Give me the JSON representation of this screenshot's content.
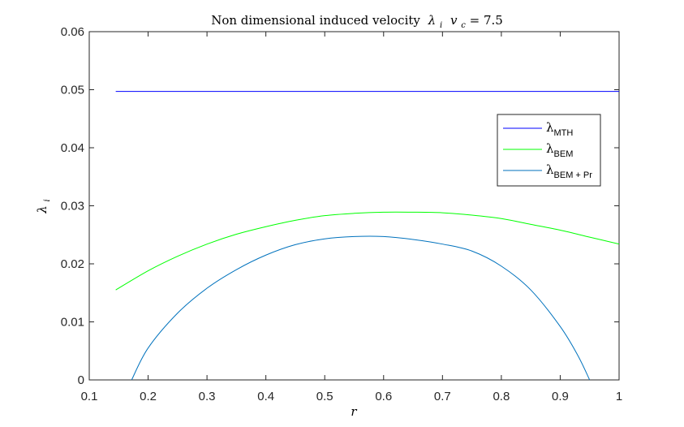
{
  "chart_data": {
    "type": "line",
    "title": "Non dimensional induced velocity",
    "title_math": {
      "symbol": "λ",
      "symbol_sub": "i",
      "var": "v",
      "var_sub": "c",
      "equals": " = 7.5"
    },
    "xlabel": "r",
    "ylabel": {
      "symbol": "λ",
      "sub": "i"
    },
    "xlim": [
      0.1,
      1.0
    ],
    "ylim": [
      0,
      0.06
    ],
    "xticks": [
      "0.1",
      "0.2",
      "0.3",
      "0.4",
      "0.5",
      "0.6",
      "0.7",
      "0.8",
      "0.9",
      "1"
    ],
    "yticks": [
      "0",
      "0.01",
      "0.02",
      "0.03",
      "0.04",
      "0.05",
      "0.06"
    ],
    "grid": false,
    "legend_position": "top-right",
    "series": [
      {
        "name": "λ",
        "sub": "MTH",
        "color": "#0000ff",
        "x": [
          0.145,
          1.0
        ],
        "y": [
          0.0497,
          0.0497
        ]
      },
      {
        "name": "λ",
        "sub": "BEM",
        "color": "#00ff00",
        "x": [
          0.145,
          0.2,
          0.25,
          0.3,
          0.35,
          0.4,
          0.45,
          0.5,
          0.55,
          0.6,
          0.65,
          0.7,
          0.75,
          0.8,
          0.85,
          0.9,
          0.95,
          1.0
        ],
        "y": [
          0.0155,
          0.0188,
          0.0213,
          0.0234,
          0.0251,
          0.0264,
          0.0275,
          0.0283,
          0.0287,
          0.0289,
          0.0289,
          0.0288,
          0.0284,
          0.0278,
          0.0268,
          0.0258,
          0.0246,
          0.0234
        ]
      },
      {
        "name": "λ",
        "sub": "BEM + Pr",
        "color": "#0072bd",
        "x": [
          0.172,
          0.2,
          0.25,
          0.3,
          0.35,
          0.4,
          0.45,
          0.5,
          0.55,
          0.6,
          0.65,
          0.7,
          0.75,
          0.8,
          0.85,
          0.9,
          0.93,
          0.95
        ],
        "y": [
          0.0,
          0.0055,
          0.0115,
          0.0158,
          0.019,
          0.0215,
          0.0233,
          0.0243,
          0.0247,
          0.0247,
          0.0242,
          0.0234,
          0.0222,
          0.0196,
          0.0155,
          0.0092,
          0.0042,
          0.0
        ]
      }
    ]
  }
}
